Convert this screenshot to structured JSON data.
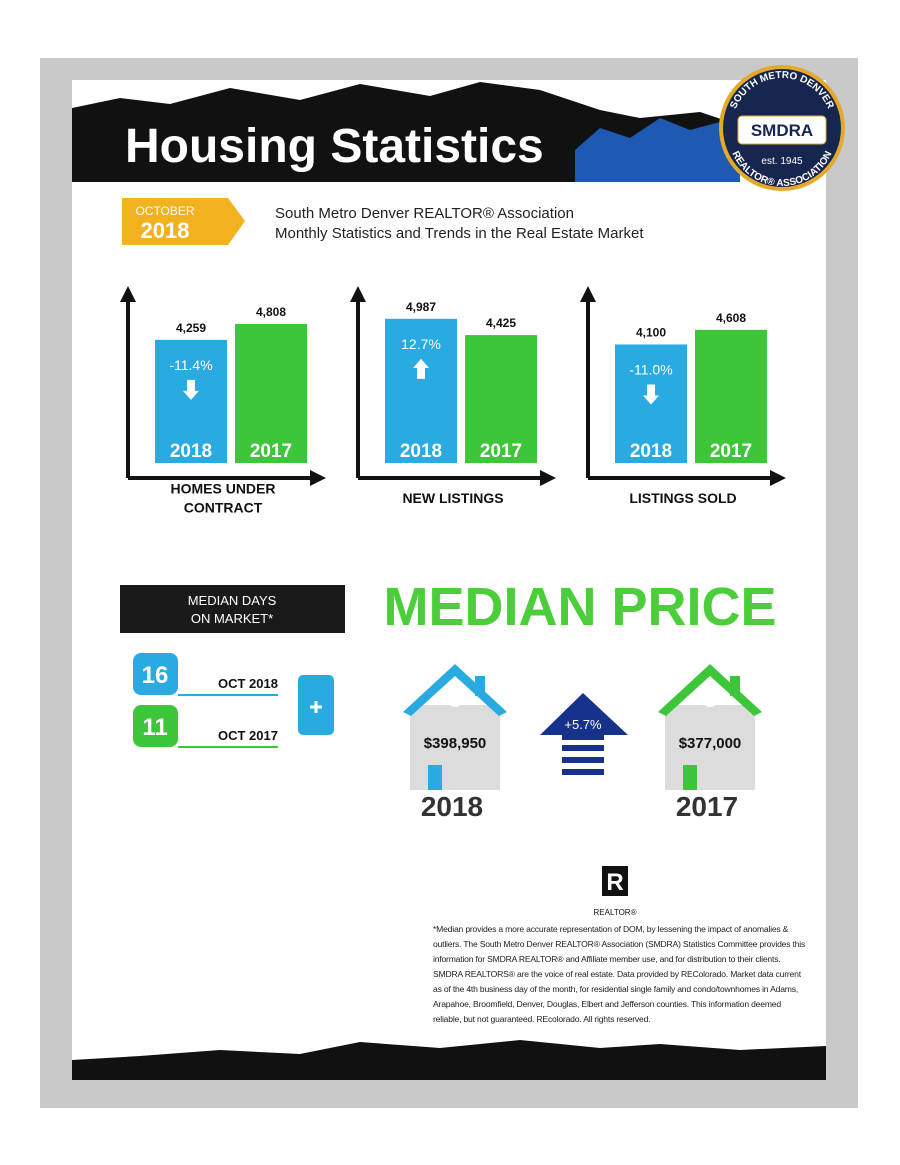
{
  "header": {
    "title": "Housing Statistics",
    "logo": {
      "name": "SMDRA",
      "top": "SOUTH METRO DENVER",
      "bottom": "REALTOR® ASSOCIATION",
      "est": "est. 1945"
    }
  },
  "badge": {
    "month": "OCTOBER",
    "year": "2018"
  },
  "subtitle": [
    "South Metro Denver REALTOR® Association",
    "Monthly Statistics and Trends in the Real Estate Market"
  ],
  "chart_data": [
    {
      "type": "bar",
      "title": [
        "HOMES UNDER",
        "CONTRACT"
      ],
      "categories": [
        "2018",
        "2017"
      ],
      "values": [
        4259,
        4808
      ],
      "value_labels": [
        "4,259",
        "4,808"
      ],
      "colors": [
        "#29abe2",
        "#3ec63b"
      ],
      "ylim": [
        0,
        5500
      ],
      "change": {
        "value": -11.4,
        "label": "-11.4%"
      }
    },
    {
      "type": "bar",
      "title": [
        "NEW LISTINGS"
      ],
      "categories": [
        "2018",
        "2017"
      ],
      "values": [
        4987,
        4425
      ],
      "value_labels": [
        "4,987",
        "4,425"
      ],
      "colors": [
        "#29abe2",
        "#3ec63b"
      ],
      "ylim": [
        0,
        5500
      ],
      "change": {
        "value": 12.7,
        "label": "12.7%"
      }
    },
    {
      "type": "bar",
      "title": [
        "LISTINGS SOLD"
      ],
      "categories": [
        "2018",
        "2017"
      ],
      "values": [
        4100,
        4608
      ],
      "value_labels": [
        "4,100",
        "4,608"
      ],
      "colors": [
        "#29abe2",
        "#3ec63b"
      ],
      "ylim": [
        0,
        5500
      ],
      "change": {
        "value": -11.0,
        "label": "-11.0%"
      }
    }
  ],
  "days_on_market": {
    "title": [
      "MEDIAN DAYS",
      "ON MARKET*"
    ],
    "rows": [
      {
        "value": 16,
        "label": "OCT 2018",
        "color": "#29abe2"
      },
      {
        "value": 11,
        "label": "OCT 2017",
        "color": "#3ec63b"
      }
    ]
  },
  "median_price": {
    "title": "MEDIAN PRICE",
    "change": "+5.7%",
    "items": [
      {
        "price": "$398,950",
        "year": "2018",
        "color": "#29abe2"
      },
      {
        "price": "$377,000",
        "year": "2017",
        "color": "#3ec63b"
      }
    ]
  },
  "footer": {
    "logo": "REALTOR®",
    "note": "*Median provides a more accurate representation of DOM, by lessening the impact of anomalies & outliers. The South Metro Denver REALTOR® Association (SMDRA) Statistics Committee provides this information for SMDRA REALTOR® and Affiliate member use, and for distribution to their clients. SMDRA REALTORS® are the voice of real estate. Data provided by REColorado. Market data current as of the 4th business day of the month, for residential single family and condo/townhomes in Adams, Arapahoe, Broomfield, Denver, Douglas, Elbert and Jefferson counties. This information deemed reliable, but not guaranteed. REcolorado. All rights reserved."
  }
}
